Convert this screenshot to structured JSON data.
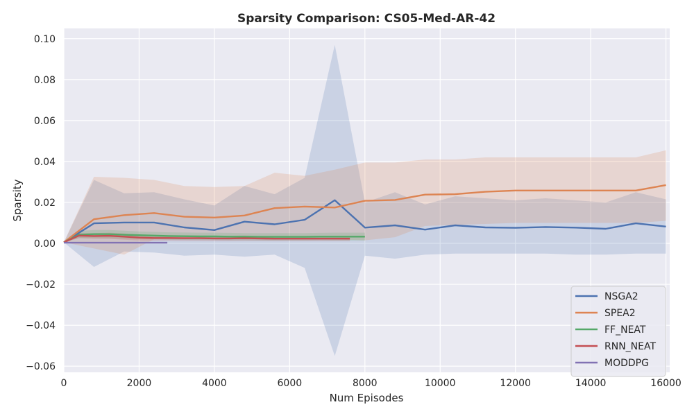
{
  "chart_data": {
    "type": "line",
    "title": "Sparsity Comparison: CS05-Med-AR-42",
    "xlabel": "Num Episodes",
    "ylabel": "Sparsity",
    "xlim": [
      0,
      16100
    ],
    "ylim": [
      -0.063,
      0.105
    ],
    "xticks": [
      0,
      2000,
      4000,
      6000,
      8000,
      10000,
      12000,
      14000,
      16000
    ],
    "xtick_labels": [
      "0",
      "2000",
      "4000",
      "6000",
      "8000",
      "10000",
      "12000",
      "14000",
      "16000"
    ],
    "yticks": [
      -0.06,
      -0.04,
      -0.02,
      0.0,
      0.02,
      0.04,
      0.06,
      0.08,
      0.1
    ],
    "ytick_labels": [
      "−0.06",
      "−0.04",
      "−0.02",
      "0.00",
      "0.02",
      "0.04",
      "0.06",
      "0.08",
      "0.10"
    ],
    "grid": true,
    "legend_position": "bottom-right",
    "series": [
      {
        "name": "NSGA2",
        "color": "#4c72b0",
        "x": [
          0,
          800,
          1600,
          2400,
          3200,
          4000,
          4800,
          5600,
          6400,
          7200,
          8000,
          8800,
          9600,
          10400,
          11200,
          12000,
          12800,
          13600,
          14400,
          15200,
          16000
        ],
        "y": [
          0.0005,
          0.0098,
          0.0102,
          0.0102,
          0.0078,
          0.0065,
          0.0106,
          0.0093,
          0.0115,
          0.0211,
          0.0077,
          0.0088,
          0.0067,
          0.0088,
          0.0078,
          0.0076,
          0.008,
          0.0077,
          0.0071,
          0.0098,
          0.0082
        ],
        "upper": [
          0.0005,
          0.031,
          0.0245,
          0.025,
          0.0215,
          0.0185,
          0.028,
          0.024,
          0.032,
          0.097,
          0.02,
          0.025,
          0.019,
          0.023,
          0.022,
          0.021,
          0.022,
          0.021,
          0.02,
          0.025,
          0.0215
        ],
        "lower": [
          0.0005,
          -0.0115,
          -0.004,
          -0.0045,
          -0.006,
          -0.0055,
          -0.0065,
          -0.0055,
          -0.012,
          -0.055,
          -0.006,
          -0.0075,
          -0.0055,
          -0.005,
          -0.005,
          -0.005,
          -0.005,
          -0.0055,
          -0.0055,
          -0.005,
          -0.005
        ]
      },
      {
        "name": "SPEA2",
        "color": "#dd8452",
        "x": [
          0,
          800,
          1600,
          2400,
          3200,
          4000,
          4800,
          5600,
          6400,
          7200,
          8000,
          8800,
          9600,
          10400,
          11200,
          12000,
          12800,
          13600,
          14400,
          15200,
          16000
        ],
        "y": [
          0.0005,
          0.0118,
          0.0138,
          0.0148,
          0.013,
          0.0126,
          0.0136,
          0.0172,
          0.018,
          0.0175,
          0.0208,
          0.0212,
          0.0238,
          0.024,
          0.0252,
          0.0258,
          0.0258,
          0.0258,
          0.0258,
          0.0258,
          0.0285
        ],
        "upper": [
          0.0005,
          0.0325,
          0.032,
          0.031,
          0.028,
          0.0275,
          0.028,
          0.0345,
          0.033,
          0.036,
          0.0395,
          0.0395,
          0.041,
          0.041,
          0.042,
          0.042,
          0.042,
          0.042,
          0.042,
          0.042,
          0.0455
        ],
        "lower": [
          0.0005,
          -0.0025,
          -0.0055,
          0.002,
          0.002,
          0.0025,
          0.002,
          0.002,
          0.0025,
          0.002,
          0.0015,
          0.003,
          0.0085,
          0.009,
          0.0095,
          0.01,
          0.01,
          0.01,
          0.01,
          0.01,
          0.011
        ]
      },
      {
        "name": "FF_NEAT",
        "color": "#55a868",
        "x": [
          0,
          400,
          800,
          1200,
          1600,
          2000,
          2400,
          2800,
          3200,
          3600,
          4000,
          4400,
          4800,
          5200,
          5600,
          6000,
          6400,
          6800,
          7200,
          7600,
          8000
        ],
        "y": [
          0.0005,
          0.0042,
          0.0045,
          0.0045,
          0.0042,
          0.004,
          0.0038,
          0.0036,
          0.0035,
          0.0034,
          0.0034,
          0.0033,
          0.0033,
          0.0032,
          0.0032,
          0.0032,
          0.0032,
          0.0033,
          0.0033,
          0.0033,
          0.0033
        ],
        "upper": [
          0.0005,
          0.006,
          0.0065,
          0.0065,
          0.0062,
          0.0058,
          0.0056,
          0.0054,
          0.0053,
          0.0052,
          0.0052,
          0.0051,
          0.005,
          0.005,
          0.005,
          0.005,
          0.005,
          0.0051,
          0.0052,
          0.0052,
          0.0052
        ],
        "lower": [
          0.0005,
          0.0025,
          0.0026,
          0.0025,
          0.0023,
          0.0021,
          0.002,
          0.0018,
          0.0017,
          0.0016,
          0.0016,
          0.0015,
          0.0015,
          0.0014,
          0.0014,
          0.0014,
          0.0014,
          0.0015,
          0.0014,
          0.0014,
          0.0014
        ]
      },
      {
        "name": "RNN_NEAT",
        "color": "#c44e52",
        "x": [
          0,
          400,
          800,
          1200,
          1600,
          2000,
          2400,
          2800,
          3200,
          3600,
          4000,
          4400,
          4800,
          5200,
          5600,
          6000,
          6400,
          6800,
          7200,
          7600
        ],
        "y": [
          0.0005,
          0.0038,
          0.0036,
          0.0037,
          0.0033,
          0.0028,
          0.0026,
          0.0026,
          0.0025,
          0.0025,
          0.0024,
          0.0024,
          0.0025,
          0.0024,
          0.0023,
          0.0023,
          0.0023,
          0.0023,
          0.0023,
          0.0023
        ],
        "upper": [
          0.0005,
          0.005,
          0.005,
          0.0052,
          0.0048,
          0.0042,
          0.004,
          0.0039,
          0.0038,
          0.0038,
          0.0037,
          0.0037,
          0.0038,
          0.0036,
          0.0035,
          0.0035,
          0.0035,
          0.0035,
          0.0035,
          0.0035
        ],
        "lower": [
          0.0005,
          0.0026,
          0.0022,
          0.0022,
          0.0018,
          0.0014,
          0.0012,
          0.0013,
          0.0012,
          0.0012,
          0.0011,
          0.0011,
          0.0012,
          0.0012,
          0.0011,
          0.0011,
          0.0011,
          0.0011,
          0.0011,
          0.0011
        ]
      },
      {
        "name": "MODDPG",
        "color": "#8172b3",
        "x": [
          0,
          400,
          800,
          1200,
          1600,
          2000,
          2400,
          2750
        ],
        "y": [
          0.0003,
          0.0003,
          0.0003,
          0.0003,
          0.0003,
          0.0003,
          0.0003,
          0.0003
        ],
        "upper": [
          0.0004,
          0.0004,
          0.0004,
          0.0004,
          0.0004,
          0.0004,
          0.0004,
          0.0004
        ],
        "lower": [
          0.0002,
          0.0002,
          0.0002,
          0.0002,
          0.0002,
          0.0002,
          0.0002,
          0.0002
        ]
      }
    ]
  }
}
